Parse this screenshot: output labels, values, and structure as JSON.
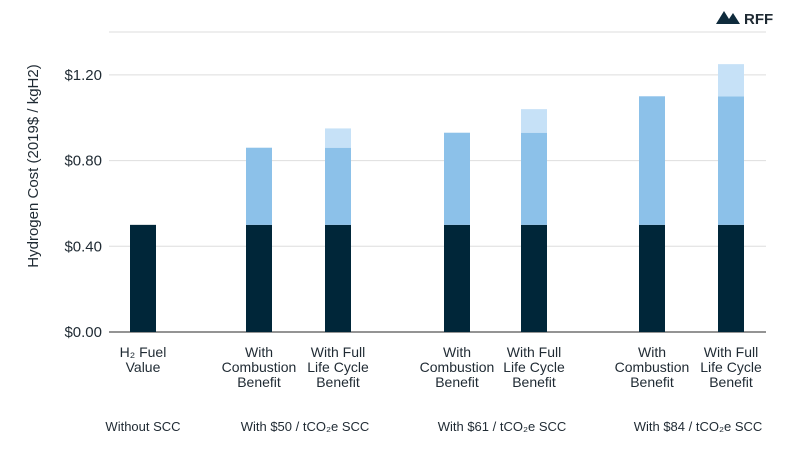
{
  "brand": {
    "name": "RFF",
    "colors": {
      "mark": "#0f2b3c"
    }
  },
  "chart_data": {
    "type": "bar",
    "stacked": true,
    "title": "",
    "ylabel": "Hydrogen Cost (2019$ / kgH2)",
    "xlabel": "",
    "ylim": [
      0,
      1.4
    ],
    "yticks": [
      0.0,
      0.4,
      0.8,
      1.2
    ],
    "ytick_labels": [
      "$0.00",
      "$0.40",
      "$0.80",
      "$1.20"
    ],
    "grid": true,
    "legend": "none",
    "colors": {
      "base": "#002639",
      "combustion": "#8cc1e9",
      "lifecycle": "#c6e1f7",
      "grid": "#dedede",
      "axis": "#555555"
    },
    "categories": [
      {
        "lines": [
          "H₂ Fuel",
          "Value"
        ],
        "group": 0
      },
      {
        "lines": [
          "With",
          "Combustion",
          "Benefit"
        ],
        "group": 1
      },
      {
        "lines": [
          "With Full",
          "Life Cycle",
          "Benefit"
        ],
        "group": 1
      },
      {
        "lines": [
          "With",
          "Combustion",
          "Benefit"
        ],
        "group": 2
      },
      {
        "lines": [
          "With Full",
          "Life Cycle",
          "Benefit"
        ],
        "group": 2
      },
      {
        "lines": [
          "With",
          "Combustion",
          "Benefit"
        ],
        "group": 3
      },
      {
        "lines": [
          "With Full",
          "Life Cycle",
          "Benefit"
        ],
        "group": 3
      }
    ],
    "groups": [
      {
        "label": "Without SCC"
      },
      {
        "label": "With $50 / tCO₂e SCC"
      },
      {
        "label": "With $61 / tCO₂e SCC"
      },
      {
        "label": "With $84 / tCO₂e SCC"
      }
    ],
    "series": [
      {
        "key": "base",
        "values": [
          0.5,
          0.5,
          0.5,
          0.5,
          0.5,
          0.5,
          0.5
        ]
      },
      {
        "key": "combustion",
        "values": [
          0,
          0.36,
          0.36,
          0.43,
          0.43,
          0.6,
          0.6
        ]
      },
      {
        "key": "lifecycle",
        "values": [
          0,
          0,
          0.09,
          0,
          0.11,
          0,
          0.15
        ]
      }
    ]
  }
}
